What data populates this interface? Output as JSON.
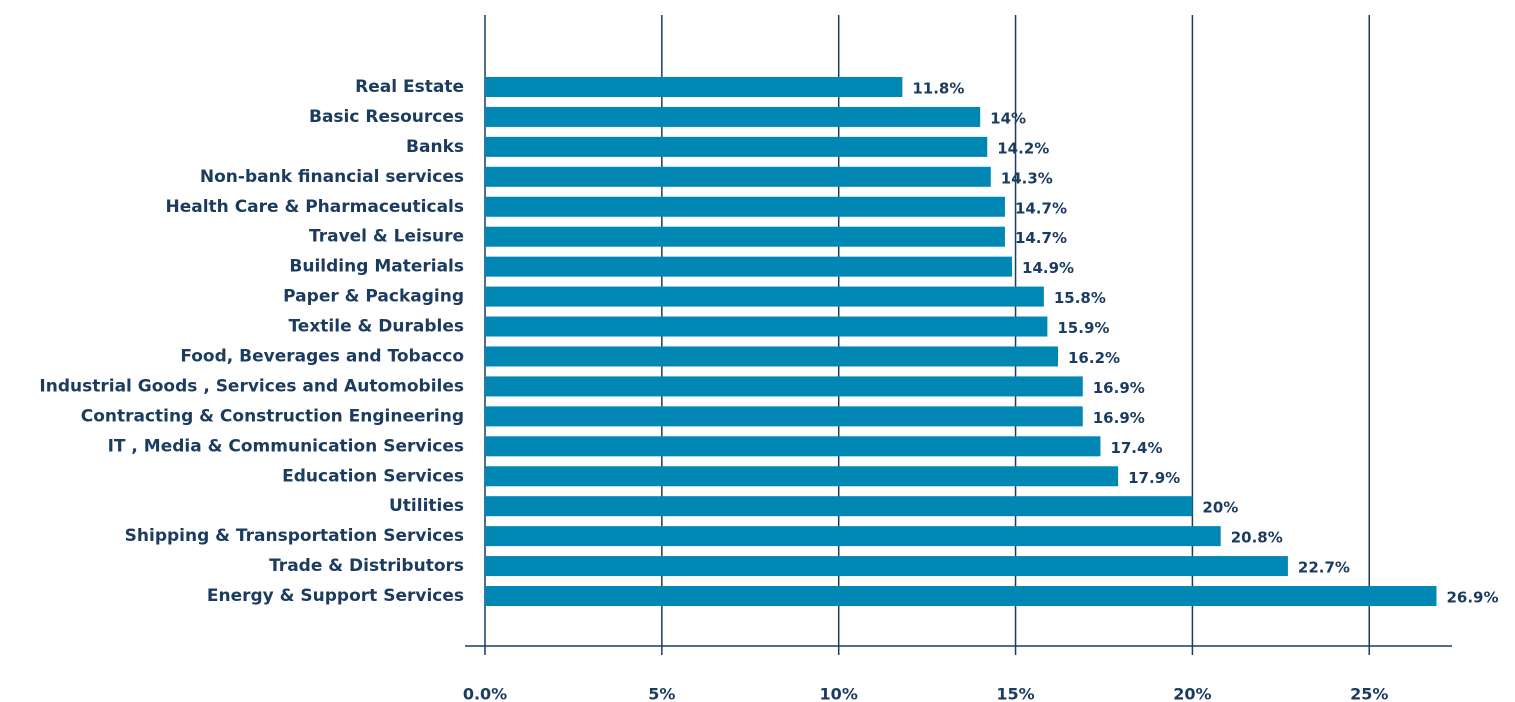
{
  "chart_data": {
    "type": "barh",
    "categories": [
      "Real Estate",
      "Basic Resources",
      "Banks",
      "Non-bank financial services",
      "Health Care & Pharmaceuticals",
      "Travel & Leisure",
      "Building Materials",
      "Paper & Packaging",
      "Textile & Durables",
      "Food, Beverages and Tobacco",
      "Industrial Goods , Services and Automobiles",
      "Contracting & Construction Engineering",
      "IT , Media & Communication Services",
      "Education Services",
      "Utilities",
      "Shipping & Transportation Services",
      "Trade & Distributors",
      "Energy & Support Services"
    ],
    "values": [
      11.8,
      14,
      14.2,
      14.3,
      14.7,
      14.7,
      14.9,
      15.8,
      15.9,
      16.2,
      16.9,
      16.9,
      17.4,
      17.9,
      20,
      20.8,
      22.7,
      26.9
    ],
    "value_labels": [
      "11.8%",
      "14%",
      "14.2%",
      "14.3%",
      "14.7%",
      "14.7%",
      "14.9%",
      "15.8%",
      "15.9%",
      "16.2%",
      "16.9%",
      "16.9%",
      "17.4%",
      "17.9%",
      "20%",
      "20.8%",
      "22.7%",
      "26.9%"
    ],
    "color": "#0087b3",
    "xlim": [
      0,
      27
    ],
    "xticks": [
      {
        "value": 0,
        "label": "0.0%"
      },
      {
        "value": 5,
        "label": "5%"
      },
      {
        "value": 10,
        "label": "10%"
      },
      {
        "value": 15,
        "label": "15%"
      },
      {
        "value": 20,
        "label": "20%"
      },
      {
        "value": 25,
        "label": "25%"
      }
    ],
    "grid": true
  }
}
